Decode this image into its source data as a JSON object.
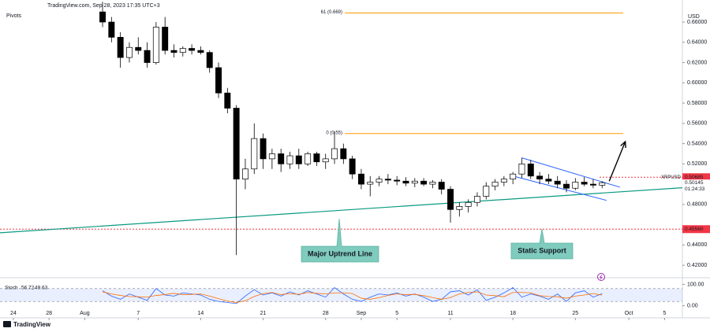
{
  "chart_data": {
    "type": "candlestick",
    "header": "TradingView.com, Sep 28, 2023 17:35 UTC+3",
    "indicator_label": "Pivots",
    "currency": "USD",
    "symbol": "XRPUSD",
    "countdown": "01:24:33",
    "brand": "TradingView",
    "x": [
      10,
      11,
      12,
      13,
      14,
      15,
      16,
      17,
      18,
      19,
      20,
      21,
      22,
      23,
      24,
      25,
      26,
      27,
      28,
      29,
      30,
      31,
      32,
      33,
      34,
      35,
      36,
      37,
      38,
      39,
      40,
      41,
      42,
      43,
      44,
      45,
      46,
      47,
      48,
      49,
      50,
      51,
      52,
      53,
      54,
      55,
      56,
      57,
      58,
      59,
      60,
      61,
      62,
      63,
      64,
      65,
      66
    ],
    "open": [
      0.67,
      0.66,
      0.645,
      0.625,
      0.635,
      0.632,
      0.62,
      0.655,
      0.632,
      0.63,
      0.634,
      0.632,
      0.63,
      0.615,
      0.59,
      0.575,
      0.505,
      0.515,
      0.545,
      0.525,
      0.53,
      0.52,
      0.528,
      0.52,
      0.53,
      0.522,
      0.525,
      0.535,
      0.525,
      0.51,
      0.5,
      0.502,
      0.505,
      0.504,
      0.503,
      0.501,
      0.503,
      0.5,
      0.502,
      0.495,
      0.475,
      0.478,
      0.482,
      0.488,
      0.498,
      0.502,
      0.505,
      0.51,
      0.52,
      0.508,
      0.505,
      0.503,
      0.5,
      0.496,
      0.502,
      0.5,
      0.499
    ],
    "high": [
      0.68,
      0.665,
      0.65,
      0.64,
      0.645,
      0.64,
      0.66,
      0.665,
      0.638,
      0.636,
      0.638,
      0.636,
      0.632,
      0.62,
      0.595,
      0.578,
      0.525,
      0.56,
      0.55,
      0.535,
      0.535,
      0.532,
      0.535,
      0.532,
      0.532,
      0.53,
      0.552,
      0.54,
      0.528,
      0.515,
      0.508,
      0.508,
      0.51,
      0.508,
      0.507,
      0.506,
      0.506,
      0.504,
      0.505,
      0.498,
      0.482,
      0.485,
      0.492,
      0.502,
      0.505,
      0.508,
      0.512,
      0.526,
      0.524,
      0.512,
      0.51,
      0.508,
      0.504,
      0.506,
      0.507,
      0.505,
      0.503
    ],
    "low": [
      0.655,
      0.64,
      0.615,
      0.62,
      0.628,
      0.615,
      0.618,
      0.628,
      0.625,
      0.626,
      0.628,
      0.628,
      0.61,
      0.585,
      0.57,
      0.43,
      0.495,
      0.51,
      0.515,
      0.515,
      0.512,
      0.515,
      0.515,
      0.518,
      0.518,
      0.515,
      0.52,
      0.52,
      0.505,
      0.495,
      0.488,
      0.498,
      0.5,
      0.499,
      0.498,
      0.497,
      0.498,
      0.496,
      0.49,
      0.462,
      0.468,
      0.472,
      0.478,
      0.485,
      0.494,
      0.498,
      0.5,
      0.506,
      0.505,
      0.5,
      0.5,
      0.496,
      0.492,
      0.494,
      0.498,
      0.496,
      0.496
    ],
    "close": [
      0.66,
      0.645,
      0.625,
      0.635,
      0.632,
      0.62,
      0.655,
      0.632,
      0.63,
      0.634,
      0.632,
      0.63,
      0.615,
      0.59,
      0.575,
      0.505,
      0.515,
      0.545,
      0.525,
      0.53,
      0.52,
      0.528,
      0.52,
      0.53,
      0.522,
      0.525,
      0.535,
      0.525,
      0.51,
      0.5,
      0.502,
      0.505,
      0.504,
      0.503,
      0.501,
      0.503,
      0.5,
      0.502,
      0.495,
      0.475,
      0.478,
      0.482,
      0.488,
      0.498,
      0.502,
      0.505,
      0.51,
      0.52,
      0.508,
      0.505,
      0.503,
      0.5,
      0.496,
      0.502,
      0.5,
      0.499,
      0.50145
    ],
    "xlim": [
      -1.5,
      75
    ],
    "xticks": [
      {
        "value": 0,
        "label": "24"
      },
      {
        "value": 4,
        "label": "28"
      },
      {
        "value": 8,
        "label": "Aug"
      },
      {
        "value": 14,
        "label": "7"
      },
      {
        "value": 21,
        "label": "14"
      },
      {
        "value": 28,
        "label": "21"
      },
      {
        "value": 35,
        "label": "28"
      },
      {
        "value": 39,
        "label": "Sep"
      },
      {
        "value": 43,
        "label": "5"
      },
      {
        "value": 49,
        "label": "11"
      },
      {
        "value": 56,
        "label": "18"
      },
      {
        "value": 63,
        "label": "25"
      },
      {
        "value": 69,
        "label": "Oct"
      },
      {
        "value": 73,
        "label": "5"
      }
    ],
    "ylim": [
      0.41,
      0.674
    ],
    "yticks": [
      {
        "value": 0.66,
        "label": "0.66000"
      },
      {
        "value": 0.64,
        "label": "0.64000"
      },
      {
        "value": 0.62,
        "label": "0.62000"
      },
      {
        "value": 0.6,
        "label": "0.60000"
      },
      {
        "value": 0.58,
        "label": "0.58000"
      },
      {
        "value": 0.56,
        "label": "0.56000"
      },
      {
        "value": 0.54,
        "label": "0.54000"
      },
      {
        "value": 0.52,
        "label": "0.52000"
      },
      {
        "value": 0.48,
        "label": "0.48000"
      },
      {
        "value": 0.44,
        "label": "0.44000"
      },
      {
        "value": 0.42,
        "label": "0.42000"
      }
    ],
    "last_price": 0.50145,
    "resistance": 0.50685,
    "support": {
      "value": 0.4556,
      "label": "0.45560"
    },
    "fib_levels": [
      {
        "value": 0.669,
        "label": "61 (0.669)"
      },
      {
        "value": 0.55,
        "label": "0 (0.55)"
      }
    ],
    "drawings": {
      "uptrend_line": {
        "x": [
          -1.5,
          75
        ],
        "y": [
          0.452,
          0.4965
        ]
      },
      "channel_upper": {
        "x": [
          57,
          68
        ],
        "y": [
          0.526,
          0.497
        ]
      },
      "channel_lower": {
        "x": [
          56,
          66.5
        ],
        "y": [
          0.508,
          0.484
        ]
      },
      "arrow": {
        "x": [
          66.8,
          68.6
        ],
        "y": [
          0.503,
          0.542
        ]
      }
    },
    "annotations": [
      "Major Uptrend Line",
      "Static Support"
    ],
    "stoch": {
      "label": "Stoch",
      "ylim": [
        -20,
        120
      ],
      "yticks": [
        {
          "value": 100,
          "label": "100.00"
        },
        {
          "value": 0,
          "label": "0.00"
        }
      ],
      "band": [
        20,
        80
      ],
      "series": [
        {
          "name": "%K",
          "color": "#2962ff",
          "values": [
            70,
            45,
            30,
            55,
            40,
            25,
            80,
            50,
            45,
            60,
            55,
            50,
            30,
            20,
            15,
            10,
            45,
            75,
            50,
            60,
            45,
            65,
            50,
            70,
            55,
            40,
            85,
            55,
            30,
            20,
            40,
            55,
            50,
            60,
            45,
            55,
            40,
            20,
            30,
            65,
            70,
            50,
            75,
            25,
            40,
            60,
            85,
            40,
            55,
            45,
            30,
            55,
            20,
            60,
            70,
            40,
            56.72
          ]
        },
        {
          "name": "%D",
          "color": "#ff6d00",
          "values": [
            65,
            55,
            48,
            43,
            42,
            40,
            48,
            52,
            58,
            52,
            53,
            55,
            45,
            33,
            22,
            15,
            23,
            43,
            57,
            62,
            52,
            57,
            53,
            62,
            58,
            55,
            60,
            60,
            57,
            35,
            30,
            38,
            48,
            55,
            52,
            53,
            47,
            38,
            30,
            38,
            55,
            62,
            65,
            50,
            47,
            42,
            62,
            62,
            60,
            47,
            43,
            42,
            35,
            45,
            50,
            57,
            49.63
          ]
        }
      ]
    }
  }
}
